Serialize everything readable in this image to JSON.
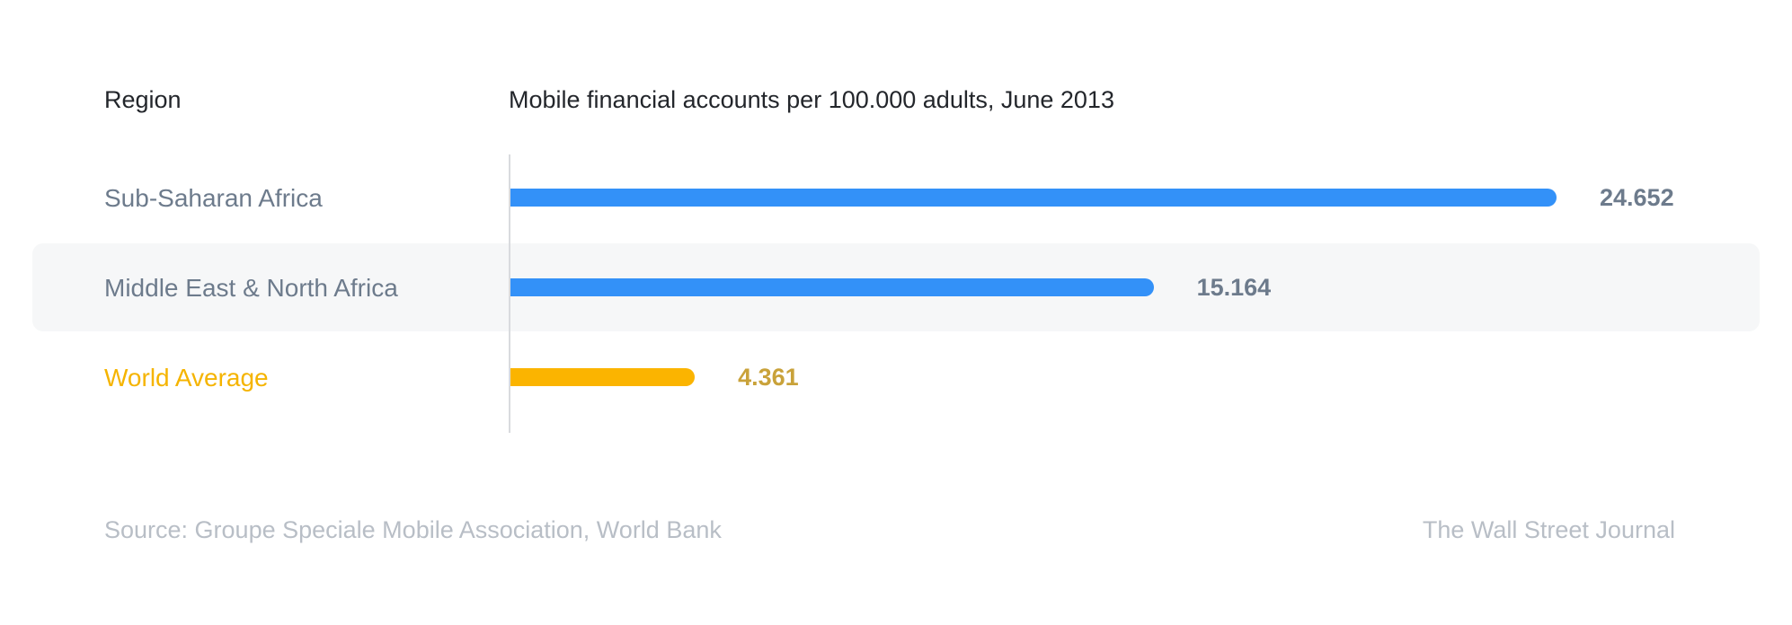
{
  "header": {
    "region_label": "Region",
    "metric_label": "Mobile financial accounts per 100.000 adults, June 2013"
  },
  "colors": {
    "bar": "#3391f8",
    "highlight_bar": "#fbb400"
  },
  "chart_data": {
    "type": "bar",
    "orientation": "horizontal",
    "categories": [
      "Sub-Saharan Africa",
      "Middle East & North Africa",
      "World Average"
    ],
    "values": [
      24652,
      15164,
      4361
    ],
    "value_labels": [
      "24.652",
      "15.164",
      "4.361"
    ],
    "highlight": [
      "World Average"
    ],
    "title": "Mobile financial accounts per 100.000 adults, June 2013",
    "xlim": [
      0,
      30000
    ]
  },
  "footer": {
    "source": "Source: Groupe Speciale Mobile Association, World Bank",
    "brand": "The Wall Street Journal"
  }
}
